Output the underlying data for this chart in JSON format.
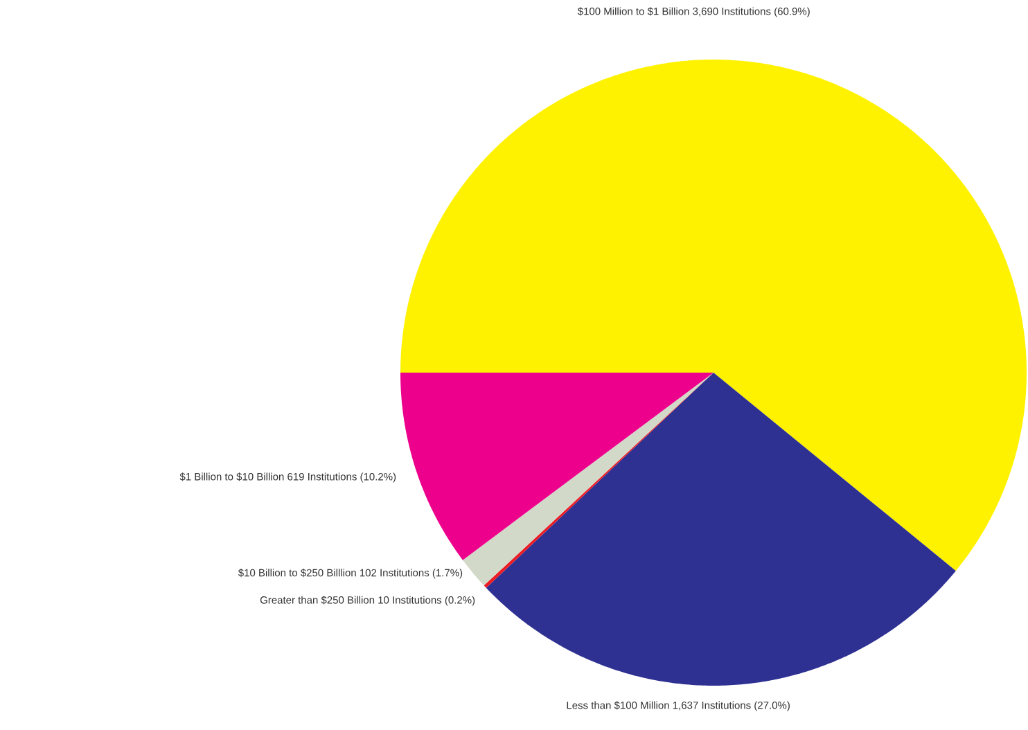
{
  "chart_data": {
    "type": "pie",
    "categories": [
      "$100 Million to $1 Billion 3,690 Institutions (60.9%)",
      "Less than $100 Million 1,637 Institutions (27.0%)",
      "Greater  than $250 Billion 10 Institutions (0.2%)",
      "$10 Billion  to $250 Billlion 102 Institutions (1.7%)",
      "$1 Billion to $10 Billion 619 Institutions (10.2%)"
    ],
    "values": [
      3690,
      1637,
      10,
      102,
      619
    ],
    "colors": [
      "#fff200",
      "#2e3192",
      "#ed1c24",
      "#d3d9c8",
      "#ec008c"
    ]
  }
}
